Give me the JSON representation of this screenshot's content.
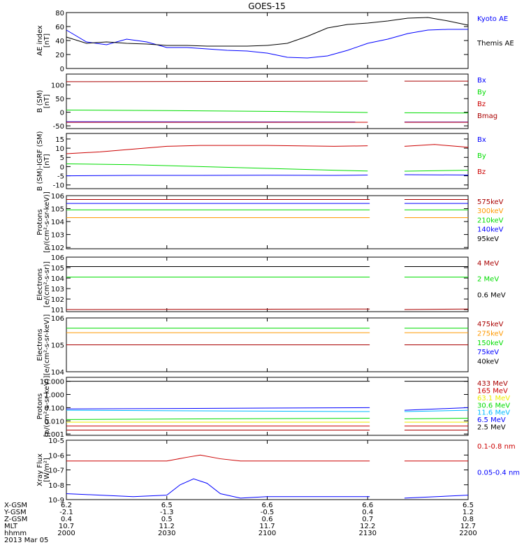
{
  "title": "GOES-15",
  "colors": {
    "black": "#000000",
    "blue": "#0000ff",
    "green": "#00dd00",
    "red": "#cc0000",
    "darkred": "#aa0000",
    "orange": "#ff9900",
    "yellow": "#eeee00",
    "cyan": "#00bbff",
    "magenta": "#aa00aa"
  },
  "chart_data": [
    {
      "id": "ae",
      "type": "line",
      "ylabel": "AE index",
      "yunit": "[nT]",
      "ylim": [
        0,
        80
      ],
      "yticks": [
        "0",
        "20",
        "40",
        "60",
        "80"
      ],
      "series": [
        {
          "name": "Kyoto AE",
          "color": "blue",
          "x": [
            0,
            3,
            6,
            9,
            12,
            15,
            18,
            21,
            24,
            27,
            30,
            33,
            36,
            39,
            42,
            45,
            48,
            51,
            54,
            57,
            60
          ],
          "y": [
            55,
            38,
            34,
            42,
            38,
            30,
            30,
            28,
            26,
            25,
            22,
            16,
            15,
            18,
            26,
            36,
            42,
            50,
            55,
            56,
            56
          ]
        },
        {
          "name": "Themis AE",
          "color": "black",
          "x": [
            0,
            3,
            6,
            9,
            12,
            15,
            18,
            21,
            24,
            27,
            30,
            33,
            36,
            39,
            42,
            45,
            48,
            51,
            54,
            57,
            60
          ],
          "y": [
            45,
            36,
            38,
            36,
            35,
            33,
            33,
            32,
            32,
            32,
            33,
            36,
            46,
            58,
            63,
            65,
            68,
            72,
            73,
            68,
            62
          ]
        }
      ]
    },
    {
      "id": "bsm",
      "type": "line",
      "ylabel": "B (SM)",
      "yunit": "[nT]",
      "ylim": [
        -60,
        140
      ],
      "yticks": [
        "-50",
        "0",
        "50",
        "100"
      ],
      "gap": [
        45.3,
        50.5
      ],
      "series": [
        {
          "name": "Bx",
          "color": "blue",
          "x": [
            0,
            45,
            50.5,
            60
          ],
          "y": [
            -35,
            -36,
            -36,
            -36
          ]
        },
        {
          "name": "By",
          "color": "green",
          "x": [
            0,
            15,
            30,
            45,
            50.5,
            60
          ],
          "y": [
            8,
            6,
            3,
            -1,
            -2,
            -3
          ]
        },
        {
          "name": "Bz",
          "color": "red",
          "x": [
            0,
            45,
            50.5,
            60
          ],
          "y": [
            -37,
            -37,
            -37,
            -37
          ]
        },
        {
          "name": "Bmag",
          "color": "darkred",
          "x": [
            0,
            45,
            50.5,
            60
          ],
          "y": [
            112,
            114,
            114,
            114
          ]
        }
      ]
    },
    {
      "id": "digrf",
      "type": "line",
      "ylabel": "B (SM)-IGRF (SM)",
      "yunit": "[nT]",
      "ylim": [
        -12,
        18
      ],
      "yticks": [
        "-10",
        "-5",
        "0",
        "5",
        "10",
        "15"
      ],
      "gap": [
        45.3,
        50.5
      ],
      "series": [
        {
          "name": "Bx",
          "color": "blue",
          "x": [
            0,
            10,
            20,
            30,
            40,
            45,
            50.5,
            60
          ],
          "y": [
            -5,
            -4.8,
            -4.8,
            -4.7,
            -4.8,
            -4.6,
            -4.4,
            -4.6
          ]
        },
        {
          "name": "By",
          "color": "green",
          "x": [
            0,
            10,
            20,
            30,
            40,
            45,
            50.5,
            60
          ],
          "y": [
            1.5,
            1,
            0,
            -1,
            -2,
            -2.4,
            -2.5,
            -2
          ]
        },
        {
          "name": "Bz",
          "color": "red",
          "x": [
            0,
            5,
            10,
            15,
            20,
            30,
            40,
            45,
            50.5,
            55,
            60
          ],
          "y": [
            7,
            8,
            9.5,
            11,
            11.5,
            11.5,
            11,
            11.3,
            11,
            12,
            10.5
          ]
        }
      ]
    },
    {
      "id": "protons",
      "type": "line",
      "log": true,
      "ylabel": "Protons",
      "yunit": "[p/(cm²-s-sr-keV)]",
      "ylim_exp": [
        1.9,
        6.0
      ],
      "yticks_exp": [
        2,
        3,
        4,
        5,
        6
      ],
      "gap": [
        45.3,
        50.5
      ],
      "series": [
        {
          "name": "575keV",
          "color": "darkred",
          "x": [
            0,
            45.3,
            50.5,
            60
          ],
          "y": [
            5.7,
            5.7,
            5.7,
            5.7
          ]
        },
        {
          "name": "300keV",
          "color": "orange",
          "x": [
            0,
            45.3,
            50.5,
            60
          ],
          "y": [
            4.3,
            4.3,
            4.3,
            4.3
          ]
        },
        {
          "name": "210keV",
          "color": "green",
          "x": [
            0,
            45.3,
            50.5,
            60
          ],
          "y": [
            4.9,
            4.9,
            4.9,
            4.9
          ]
        },
        {
          "name": "140keV",
          "color": "blue",
          "x": [
            0,
            45.3,
            50.5,
            60
          ],
          "y": [
            5.4,
            5.4,
            5.4,
            5.4
          ]
        },
        {
          "name": "95keV",
          "color": "black",
          "x": [
            0,
            45.3,
            50.5,
            60
          ],
          "y": [
            6.0,
            6.0,
            6.0,
            6.0
          ]
        }
      ]
    },
    {
      "id": "electrons_hi",
      "type": "line",
      "log": true,
      "ylabel": "Electrons",
      "yunit": "[e/(cm²-s-sr)]",
      "ylim_exp": [
        0.8,
        6.0
      ],
      "yticks_exp": [
        1,
        2,
        3,
        4,
        5,
        6
      ],
      "gap": [
        45.3,
        50.5
      ],
      "series": [
        {
          "name": "4 MeV",
          "color": "darkred",
          "x": [
            0,
            45.3,
            50.5,
            60
          ],
          "y": [
            1.0,
            1.05,
            1.0,
            1.05
          ]
        },
        {
          "name": "2 MeV",
          "color": "green",
          "x": [
            0,
            45.3,
            50.5,
            60
          ],
          "y": [
            4.1,
            4.1,
            4.1,
            4.1
          ]
        },
        {
          "name": "0.6 MeV",
          "color": "black",
          "x": [
            0,
            45.3,
            50.5,
            60
          ],
          "y": [
            5.1,
            5.1,
            5.1,
            5.1
          ]
        }
      ]
    },
    {
      "id": "electrons_lo",
      "type": "line",
      "log": true,
      "ylabel": "Electrons",
      "yunit": "[e/(cm²-s-sr-keV)]",
      "ylim_exp": [
        4.0,
        6.0
      ],
      "yticks_exp": [
        4,
        5,
        6
      ],
      "gap": [
        45.3,
        50.5
      ],
      "series": [
        {
          "name": "475keV",
          "color": "darkred",
          "x": [
            0,
            45.3,
            50.5,
            60
          ],
          "y": [
            5.0,
            5.0,
            5.0,
            5.0
          ]
        },
        {
          "name": "275keV",
          "color": "orange",
          "x": [
            0,
            45.3,
            50.5,
            60
          ],
          "y": [
            5.45,
            5.45,
            5.45,
            5.45
          ]
        },
        {
          "name": "150keV",
          "color": "green",
          "x": [
            0,
            45.3,
            50.5,
            60
          ],
          "y": [
            5.62,
            5.62,
            5.62,
            5.62
          ]
        },
        {
          "name": "75keV",
          "color": "blue",
          "x": [
            0,
            45.3,
            50.5,
            60
          ],
          "y": [
            6.0,
            6.0,
            6.0,
            6.0
          ]
        },
        {
          "name": "40keV",
          "color": "black",
          "x": [
            0,
            45.3,
            50.5,
            60
          ],
          "y": [
            6.0,
            6.0,
            6.0,
            6.0
          ]
        }
      ]
    },
    {
      "id": "protons_hi",
      "type": "line",
      "log": true,
      "ylabel": "Protons",
      "yunit": "[p/(cm²-s-sr-keV)]",
      "ylim_exp": [
        -3.1,
        1.3
      ],
      "yticks": [
        "0.001",
        "0.010",
        "0.100",
        "1.000",
        "10.000"
      ],
      "yticks_exp": [
        -3,
        -2,
        -1,
        0,
        1
      ],
      "gap": [
        45.3,
        50.5
      ],
      "series": [
        {
          "name": "433 MeV",
          "color": "darkred",
          "x": [
            0,
            45.3,
            50.5,
            60
          ],
          "y": [
            -2.7,
            -2.7,
            -2.7,
            -2.7
          ]
        },
        {
          "name": "165 MeV",
          "color": "red",
          "x": [
            0,
            45.3,
            50.5,
            60
          ],
          "y": [
            -2.4,
            -2.4,
            -2.4,
            -2.4
          ]
        },
        {
          "name": "63.1 MeV",
          "color": "yellow",
          "x": [
            0,
            45.3,
            50.5,
            60
          ],
          "y": [
            -2.1,
            -2.1,
            -2.1,
            -2.1
          ]
        },
        {
          "name": "30.6 MeV",
          "color": "green",
          "x": [
            0,
            45.3,
            50.5,
            60
          ],
          "y": [
            -1.9,
            -1.8,
            -1.85,
            -1.8
          ]
        },
        {
          "name": "11.6 MeV",
          "color": "cyan",
          "x": [
            0,
            45.3,
            50.5,
            60
          ],
          "y": [
            -1.2,
            -1.3,
            -1.3,
            -1.2
          ]
        },
        {
          "name": "6.5 MeV",
          "color": "blue",
          "x": [
            0,
            45.3,
            50.5,
            60
          ],
          "y": [
            -1.1,
            -1.0,
            -1.2,
            -1.0
          ]
        },
        {
          "name": "2.5 MeV",
          "color": "black",
          "x": [
            0,
            45.3,
            50.5,
            60
          ],
          "y": [
            1.0,
            1.0,
            1.0,
            1.0
          ]
        }
      ]
    },
    {
      "id": "xray",
      "type": "line",
      "log": true,
      "ylabel": "Xray Flux",
      "yunit": "[W/m²]",
      "ylim_exp": [
        -9.0,
        -5.0
      ],
      "yticks_exp": [
        -9,
        -8,
        -7,
        -6,
        -5
      ],
      "gap": [
        45.3,
        50.5
      ],
      "series": [
        {
          "name": "0.1-0.8 nm",
          "color": "red",
          "x": [
            0,
            10,
            15,
            18,
            20,
            23,
            26,
            30,
            45.3,
            50.5,
            60
          ],
          "y": [
            -6.4,
            -6.4,
            -6.4,
            -6.15,
            -6.0,
            -6.25,
            -6.4,
            -6.4,
            -6.4,
            -6.4,
            -6.4
          ]
        },
        {
          "name": "0.05-0.4 nm",
          "color": "blue",
          "x": [
            0,
            5,
            10,
            15,
            17,
            19,
            21,
            23,
            26,
            30,
            45.3,
            50.5,
            60
          ],
          "y": [
            -8.6,
            -8.7,
            -8.8,
            -8.7,
            -8.0,
            -7.6,
            -7.9,
            -8.6,
            -8.9,
            -8.8,
            -8.8,
            -8.9,
            -8.7
          ]
        }
      ]
    }
  ],
  "xaxis": {
    "row_labels": [
      "X-GSM",
      "Y-GSM",
      "Z-GSM",
      "MLT",
      "hhmm",
      "2013 Mar 05"
    ],
    "ticks": [
      {
        "x": 0,
        "vals": [
          "6.2",
          "-2.1",
          "0.4",
          "10.7",
          "2000"
        ]
      },
      {
        "x": 15,
        "vals": [
          "6.5",
          "-1.3",
          "0.5",
          "11.2",
          "2030"
        ]
      },
      {
        "x": 30,
        "vals": [
          "6.6",
          "-0.5",
          "0.6",
          "11.7",
          "2100"
        ]
      },
      {
        "x": 45,
        "vals": [
          "6.6",
          "0.4",
          "0.7",
          "12.2",
          "2130"
        ]
      },
      {
        "x": 60,
        "vals": [
          "6.5",
          "1.2",
          "0.8",
          "12.7",
          "2200"
        ]
      }
    ],
    "xlim": [
      0,
      60
    ]
  }
}
